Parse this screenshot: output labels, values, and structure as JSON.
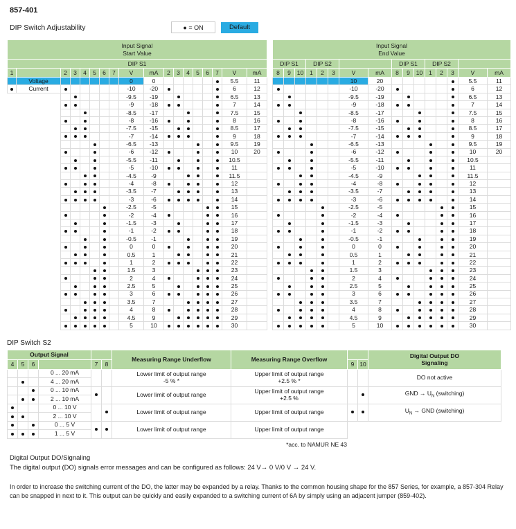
{
  "page": {
    "part_number": "857-401",
    "title": "DIP Switch Adjustability",
    "legend": {
      "on_label": "● = ON",
      "default_label": "Default"
    }
  },
  "colors": {
    "header_green": "#b5d7a2",
    "highlight_blue": "#29abe2",
    "grid": "#dcdcdc",
    "text": "#1a1a1a"
  },
  "start_table": {
    "title_lines": [
      "Input Signal",
      "Start Value"
    ],
    "banner": [
      {
        "label": "DIP S1",
        "span": 18
      }
    ],
    "col_headers": [
      "1",
      "",
      "2",
      "3",
      "4",
      "5",
      "6",
      "7",
      "V",
      "mA",
      "2",
      "3",
      "4",
      "5",
      "6",
      "7",
      "V",
      "mA"
    ],
    "rows": [
      {
        "type": "Voltage",
        "t1": false,
        "hl": true,
        "d1": [],
        "v1": "0",
        "a1": "0",
        "d2": [
          5
        ],
        "v2": "5.5",
        "a2": "11"
      },
      {
        "type": "Current",
        "t1": true,
        "d1": [
          0
        ],
        "v1": "-10",
        "a1": "-20",
        "d2": [
          0,
          5
        ],
        "v2": "6",
        "a2": "12"
      },
      {
        "d1": [
          1
        ],
        "v1": "-9.5",
        "a1": "-19",
        "d2": [
          1,
          5
        ],
        "v2": "6.5",
        "a2": "13"
      },
      {
        "d1": [
          0,
          1
        ],
        "v1": "-9",
        "a1": "-18",
        "d2": [
          0,
          1,
          5
        ],
        "v2": "7",
        "a2": "14"
      },
      {
        "d1": [
          2
        ],
        "v1": "-8.5",
        "a1": "-17",
        "d2": [
          2,
          5
        ],
        "v2": "7.5",
        "a2": "15"
      },
      {
        "d1": [
          0,
          2
        ],
        "v1": "-8",
        "a1": "-16",
        "d2": [
          0,
          2,
          5
        ],
        "v2": "8",
        "a2": "16"
      },
      {
        "d1": [
          1,
          2
        ],
        "v1": "-7.5",
        "a1": "-15",
        "d2": [
          1,
          2,
          5
        ],
        "v2": "8.5",
        "a2": "17"
      },
      {
        "d1": [
          0,
          1,
          2
        ],
        "v1": "-7",
        "a1": "-14",
        "d2": [
          0,
          1,
          2,
          5
        ],
        "v2": "9",
        "a2": "18"
      },
      {
        "d1": [
          3
        ],
        "v1": "-6.5",
        "a1": "-13",
        "d2": [
          3,
          5
        ],
        "v2": "9.5",
        "a2": "19"
      },
      {
        "d1": [
          0,
          3
        ],
        "v1": "-6",
        "a1": "-12",
        "d2": [
          0,
          3,
          5
        ],
        "v2": "10",
        "a2": "20"
      },
      {
        "d1": [
          1,
          3
        ],
        "v1": "-5.5",
        "a1": "-11",
        "d2": [
          1,
          3,
          5
        ],
        "v2": "10.5",
        "a2": ""
      },
      {
        "d1": [
          0,
          1,
          3
        ],
        "v1": "-5",
        "a1": "-10",
        "d2": [
          0,
          1,
          3,
          5
        ],
        "v2": "11",
        "a2": ""
      },
      {
        "d1": [
          2,
          3
        ],
        "v1": "-4.5",
        "a1": "-9",
        "d2": [
          2,
          3,
          5
        ],
        "v2": "11.5",
        "a2": ""
      },
      {
        "d1": [
          0,
          2,
          3
        ],
        "v1": "-4",
        "a1": "-8",
        "d2": [
          0,
          2,
          3,
          5
        ],
        "v2": "12",
        "a2": ""
      },
      {
        "d1": [
          1,
          2,
          3
        ],
        "v1": "-3.5",
        "a1": "-7",
        "d2": [
          1,
          2,
          3,
          5
        ],
        "v2": "13",
        "a2": ""
      },
      {
        "d1": [
          0,
          1,
          2,
          3
        ],
        "v1": "-3",
        "a1": "-6",
        "d2": [
          0,
          1,
          2,
          3,
          5
        ],
        "v2": "14",
        "a2": ""
      },
      {
        "d1": [
          4
        ],
        "v1": "-2.5",
        "a1": "-5",
        "d2": [
          4,
          5
        ],
        "v2": "15",
        "a2": ""
      },
      {
        "d1": [
          0,
          4
        ],
        "v1": "-2",
        "a1": "-4",
        "d2": [
          0,
          4,
          5
        ],
        "v2": "16",
        "a2": ""
      },
      {
        "d1": [
          1,
          4
        ],
        "v1": "-1.5",
        "a1": "-3",
        "d2": [
          1,
          4,
          5
        ],
        "v2": "17",
        "a2": ""
      },
      {
        "d1": [
          0,
          1,
          4
        ],
        "v1": "-1",
        "a1": "-2",
        "d2": [
          0,
          1,
          4,
          5
        ],
        "v2": "18",
        "a2": ""
      },
      {
        "d1": [
          2,
          4
        ],
        "v1": "-0.5",
        "a1": "-1",
        "d2": [
          2,
          4,
          5
        ],
        "v2": "19",
        "a2": ""
      },
      {
        "d1": [
          0,
          2,
          4
        ],
        "v1": "0",
        "a1": "0",
        "d2": [
          0,
          2,
          4,
          5
        ],
        "v2": "20",
        "a2": ""
      },
      {
        "d1": [
          1,
          2,
          4
        ],
        "v1": "0.5",
        "a1": "1",
        "d2": [
          1,
          2,
          4,
          5
        ],
        "v2": "21",
        "a2": ""
      },
      {
        "d1": [
          0,
          1,
          2,
          4
        ],
        "v1": "1",
        "a1": "2",
        "d2": [
          0,
          1,
          2,
          4,
          5
        ],
        "v2": "22",
        "a2": ""
      },
      {
        "d1": [
          3,
          4
        ],
        "v1": "1.5",
        "a1": "3",
        "d2": [
          3,
          4,
          5
        ],
        "v2": "23",
        "a2": ""
      },
      {
        "d1": [
          0,
          3,
          4
        ],
        "v1": "2",
        "a1": "4",
        "d2": [
          0,
          3,
          4,
          5
        ],
        "v2": "24",
        "a2": ""
      },
      {
        "d1": [
          1,
          3,
          4
        ],
        "v1": "2.5",
        "a1": "5",
        "d2": [
          1,
          3,
          4,
          5
        ],
        "v2": "25",
        "a2": ""
      },
      {
        "d1": [
          0,
          1,
          3,
          4
        ],
        "v1": "3",
        "a1": "6",
        "d2": [
          0,
          1,
          3,
          4,
          5
        ],
        "v2": "26",
        "a2": ""
      },
      {
        "d1": [
          2,
          3,
          4
        ],
        "v1": "3.5",
        "a1": "7",
        "d2": [
          2,
          3,
          4,
          5
        ],
        "v2": "27",
        "a2": ""
      },
      {
        "d1": [
          0,
          2,
          3,
          4
        ],
        "v1": "4",
        "a1": "8",
        "d2": [
          0,
          2,
          3,
          4,
          5
        ],
        "v2": "28",
        "a2": ""
      },
      {
        "d1": [
          1,
          2,
          3,
          4
        ],
        "v1": "4.5",
        "a1": "9",
        "d2": [
          1,
          2,
          3,
          4,
          5
        ],
        "v2": "29",
        "a2": ""
      },
      {
        "d1": [
          0,
          1,
          2,
          3,
          4
        ],
        "v1": "5",
        "a1": "10",
        "d2": [
          0,
          1,
          2,
          3,
          4,
          5
        ],
        "v2": "30",
        "a2": ""
      }
    ]
  },
  "end_table": {
    "title_lines": [
      "Input Signal",
      "End Value"
    ],
    "banner": [
      {
        "label": "DIP S1",
        "span": 3
      },
      {
        "label": "DIP S2",
        "span": 3
      },
      {
        "label": "",
        "span": 2
      },
      {
        "label": "DIP S1",
        "span": 3
      },
      {
        "label": "DIP S2",
        "span": 3
      },
      {
        "label": "",
        "span": 2
      }
    ],
    "col_headers": [
      "8",
      "9",
      "10",
      "1",
      "2",
      "3",
      "V",
      "mA",
      "8",
      "9",
      "10",
      "1",
      "2",
      "3",
      "V",
      "mA"
    ],
    "rows": [
      {
        "hl": true,
        "d1": [],
        "v1": "10",
        "a1": "20",
        "d2": [
          5
        ],
        "v2": "5.5",
        "a2": "11"
      },
      {
        "d1": [
          0
        ],
        "v1": "-10",
        "a1": "-20",
        "d2": [
          0,
          5
        ],
        "v2": "6",
        "a2": "12"
      },
      {
        "d1": [
          1
        ],
        "v1": "-9.5",
        "a1": "-19",
        "d2": [
          1,
          5
        ],
        "v2": "6.5",
        "a2": "13"
      },
      {
        "d1": [
          0,
          1
        ],
        "v1": "-9",
        "a1": "-18",
        "d2": [
          0,
          1,
          5
        ],
        "v2": "7",
        "a2": "14"
      },
      {
        "d1": [
          2
        ],
        "v1": "-8.5",
        "a1": "-17",
        "d2": [
          2,
          5
        ],
        "v2": "7.5",
        "a2": "15"
      },
      {
        "d1": [
          0,
          2
        ],
        "v1": "-8",
        "a1": "-16",
        "d2": [
          0,
          2,
          5
        ],
        "v2": "8",
        "a2": "16"
      },
      {
        "d1": [
          1,
          2
        ],
        "v1": "-7.5",
        "a1": "-15",
        "d2": [
          1,
          2,
          5
        ],
        "v2": "8.5",
        "a2": "17"
      },
      {
        "d1": [
          0,
          1,
          2
        ],
        "v1": "-7",
        "a1": "-14",
        "d2": [
          0,
          1,
          2,
          5
        ],
        "v2": "9",
        "a2": "18"
      },
      {
        "d1": [
          3
        ],
        "v1": "-6.5",
        "a1": "-13",
        "d2": [
          3,
          5
        ],
        "v2": "9.5",
        "a2": "19"
      },
      {
        "d1": [
          0,
          3
        ],
        "v1": "-6",
        "a1": "-12",
        "d2": [
          0,
          3,
          5
        ],
        "v2": "10",
        "a2": "20"
      },
      {
        "d1": [
          1,
          3
        ],
        "v1": "-5.5",
        "a1": "-11",
        "d2": [
          1,
          3,
          5
        ],
        "v2": "10.5",
        "a2": ""
      },
      {
        "d1": [
          0,
          1,
          3
        ],
        "v1": "-5",
        "a1": "-10",
        "d2": [
          0,
          1,
          3,
          5
        ],
        "v2": "11",
        "a2": ""
      },
      {
        "d1": [
          2,
          3
        ],
        "v1": "-4.5",
        "a1": "-9",
        "d2": [
          2,
          3,
          5
        ],
        "v2": "11.5",
        "a2": ""
      },
      {
        "d1": [
          0,
          2,
          3
        ],
        "v1": "-4",
        "a1": "-8",
        "d2": [
          0,
          2,
          3,
          5
        ],
        "v2": "12",
        "a2": ""
      },
      {
        "d1": [
          1,
          2,
          3
        ],
        "v1": "-3.5",
        "a1": "-7",
        "d2": [
          1,
          2,
          3,
          5
        ],
        "v2": "13",
        "a2": ""
      },
      {
        "d1": [
          0,
          1,
          2,
          3
        ],
        "v1": "-3",
        "a1": "-6",
        "d2": [
          0,
          1,
          2,
          3,
          5
        ],
        "v2": "14",
        "a2": ""
      },
      {
        "d1": [
          4
        ],
        "v1": "-2.5",
        "a1": "-5",
        "d2": [
          4,
          5
        ],
        "v2": "15",
        "a2": ""
      },
      {
        "d1": [
          0,
          4
        ],
        "v1": "-2",
        "a1": "-4",
        "d2": [
          0,
          4,
          5
        ],
        "v2": "16",
        "a2": ""
      },
      {
        "d1": [
          1,
          4
        ],
        "v1": "-1.5",
        "a1": "-3",
        "d2": [
          1,
          4,
          5
        ],
        "v2": "17",
        "a2": ""
      },
      {
        "d1": [
          0,
          1,
          4
        ],
        "v1": "-1",
        "a1": "-2",
        "d2": [
          0,
          1,
          4,
          5
        ],
        "v2": "18",
        "a2": ""
      },
      {
        "d1": [
          2,
          4
        ],
        "v1": "-0.5",
        "a1": "-1",
        "d2": [
          2,
          4,
          5
        ],
        "v2": "19",
        "a2": ""
      },
      {
        "d1": [
          0,
          2,
          4
        ],
        "v1": "0",
        "a1": "0",
        "d2": [
          0,
          2,
          4,
          5
        ],
        "v2": "20",
        "a2": ""
      },
      {
        "d1": [
          1,
          2,
          4
        ],
        "v1": "0.5",
        "a1": "1",
        "d2": [
          1,
          2,
          4,
          5
        ],
        "v2": "21",
        "a2": ""
      },
      {
        "d1": [
          0,
          1,
          2,
          4
        ],
        "v1": "1",
        "a1": "2",
        "d2": [
          0,
          1,
          2,
          4,
          5
        ],
        "v2": "22",
        "a2": ""
      },
      {
        "d1": [
          3,
          4
        ],
        "v1": "1.5",
        "a1": "3",
        "d2": [
          3,
          4,
          5
        ],
        "v2": "23",
        "a2": ""
      },
      {
        "d1": [
          0,
          3,
          4
        ],
        "v1": "2",
        "a1": "4",
        "d2": [
          0,
          3,
          4,
          5
        ],
        "v2": "24",
        "a2": ""
      },
      {
        "d1": [
          1,
          3,
          4
        ],
        "v1": "2.5",
        "a1": "5",
        "d2": [
          1,
          3,
          4,
          5
        ],
        "v2": "25",
        "a2": ""
      },
      {
        "d1": [
          0,
          1,
          3,
          4
        ],
        "v1": "3",
        "a1": "6",
        "d2": [
          0,
          1,
          3,
          4,
          5
        ],
        "v2": "26",
        "a2": ""
      },
      {
        "d1": [
          2,
          3,
          4
        ],
        "v1": "3.5",
        "a1": "7",
        "d2": [
          2,
          3,
          4,
          5
        ],
        "v2": "27",
        "a2": ""
      },
      {
        "d1": [
          0,
          2,
          3,
          4
        ],
        "v1": "4",
        "a1": "8",
        "d2": [
          0,
          2,
          3,
          4,
          5
        ],
        "v2": "28",
        "a2": ""
      },
      {
        "d1": [
          1,
          2,
          3,
          4
        ],
        "v1": "4.5",
        "a1": "9",
        "d2": [
          1,
          2,
          3,
          4,
          5
        ],
        "v2": "29",
        "a2": ""
      },
      {
        "d1": [
          0,
          1,
          2,
          3,
          4
        ],
        "v1": "5",
        "a1": "10",
        "d2": [
          0,
          1,
          2,
          3,
          4,
          5
        ],
        "v2": "30",
        "a2": ""
      }
    ]
  },
  "s2_table": {
    "title": "DIP Switch S2",
    "headers": {
      "output_signal": "Output Signal",
      "underflow": "Measuring Range Underflow",
      "overflow": "Measuring Range Overflow",
      "do_signaling_lines": [
        "Digital Output DO",
        "Signaling"
      ],
      "switch_cols": [
        "4",
        "5",
        "6"
      ],
      "range_cols": [
        "7",
        "8"
      ],
      "do_cols": [
        "9",
        "10"
      ]
    },
    "signal_rows": [
      {
        "dots": [],
        "label": "0 ... 20 mA",
        "hl": true
      },
      {
        "dots": [
          1
        ],
        "label": "4 ... 20 mA"
      },
      {
        "dots": [
          2
        ],
        "label": "0 ... 10 mA"
      },
      {
        "dots": [
          1,
          2
        ],
        "label": "2 ... 10 mA"
      },
      {
        "dots": [
          0
        ],
        "label": "0 ... 10 V"
      },
      {
        "dots": [
          0,
          1
        ],
        "label": "2 ... 10 V"
      },
      {
        "dots": [
          0,
          2
        ],
        "label": "0 ... 5 V"
      },
      {
        "dots": [
          0,
          1,
          2
        ],
        "label": "1 ... 5 V"
      }
    ],
    "range_groups": [
      {
        "s7": false,
        "s8": false,
        "hl": true,
        "underflow": [
          "Lower limit of output range",
          "-5 % *"
        ],
        "overflow": [
          "Upper limit of output range",
          "+2.5 % *"
        ]
      },
      {
        "s7": true,
        "s8": false,
        "underflow": [
          "Lower limit of output range"
        ],
        "overflow": [
          "Upper limit of output range",
          "+2.5 %"
        ]
      },
      {
        "s7": false,
        "s8": true,
        "underflow": [
          "Lower limit of output range"
        ],
        "overflow": [
          "Upper limit of output range"
        ]
      },
      {
        "s7": true,
        "s8": true,
        "underflow": [
          "Lower limit of output range"
        ],
        "overflow": [
          "Upper limit of output range"
        ]
      }
    ],
    "do_groups": [
      {
        "s9": false,
        "s10": false,
        "hl": true,
        "pre": "DO not active",
        "sub": "",
        "post": ""
      },
      {
        "s9": false,
        "s10": true,
        "pre": "GND → U",
        "sub": "N",
        "post": " (switching)"
      },
      {
        "s9": true,
        "s10": true,
        "pre": "U",
        "sub": "N",
        "post": " → GND (switching)"
      }
    ],
    "footnote": "*acc. to NAMUR NE 43"
  },
  "notes": {
    "heading": "Digital Output DO/Signaling",
    "line": "The digital output (DO) signals error messages and can be configured as follows: 24 V→ 0 V/0 V → 24 V.",
    "paragraph": "In order to increase the switching current of the DO, the latter may be expanded by a relay. Thanks to the common housing shape for the 857 Series, for example, a 857-304 Relay can be snapped in next to it. This output can be quickly and easily expanded to a switching current of 6A by simply using an adjacent jumper (859-402)."
  }
}
